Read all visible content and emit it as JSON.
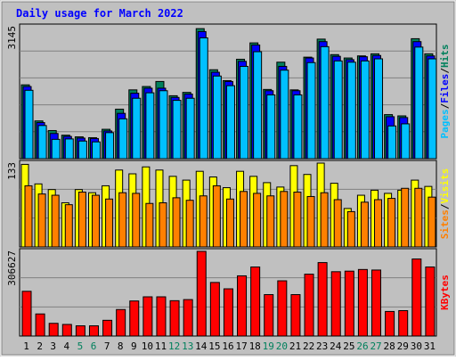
{
  "title": "Daily usage for March 2022",
  "colors": {
    "background": "#c0c0c0",
    "plot_bg": "#c0c0c0",
    "hits": "#00805c",
    "files": "#0000ff",
    "pages": "#00c0ff",
    "visits": "#ffff00",
    "sites": "#ff8000",
    "kbytes": "#ff0000",
    "title": "#0000ff",
    "weekend_day": "#00805c",
    "weekday": "#000000"
  },
  "chart_data": [
    {
      "type": "bar",
      "panel": "hits-files-pages",
      "ymax_label": "3145",
      "ylim": [
        0,
        3145
      ],
      "right_label_parts": [
        "Pages",
        "/",
        "Files",
        "/",
        "Hits"
      ],
      "categories": [
        "1",
        "2",
        "3",
        "4",
        "5",
        "6",
        "7",
        "8",
        "9",
        "10",
        "11",
        "12",
        "13",
        "14",
        "15",
        "16",
        "17",
        "18",
        "19",
        "20",
        "21",
        "22",
        "23",
        "24",
        "25",
        "26",
        "27",
        "28",
        "29",
        "30",
        "31"
      ],
      "series": [
        {
          "name": "Hits",
          "values": [
            1760,
            900,
            670,
            560,
            520,
            500,
            700,
            1180,
            1640,
            1720,
            1840,
            1500,
            1580,
            3100,
            2120,
            1860,
            2370,
            2760,
            1650,
            2300,
            1640,
            2420,
            2850,
            2480,
            2400,
            2450,
            2500,
            1050,
            1020,
            2860,
            2500
          ]
        },
        {
          "name": "Files",
          "values": [
            1720,
            860,
            600,
            530,
            490,
            480,
            660,
            1080,
            1560,
            1680,
            1680,
            1460,
            1540,
            3030,
            2060,
            1840,
            2320,
            2710,
            1620,
            2200,
            1620,
            2400,
            2790,
            2440,
            2360,
            2430,
            2460,
            1000,
            980,
            2790,
            2450
          ]
        },
        {
          "name": "Pages",
          "values": [
            1630,
            790,
            460,
            470,
            420,
            400,
            620,
            950,
            1440,
            1570,
            1620,
            1390,
            1440,
            2880,
            1970,
            1740,
            2200,
            2550,
            1520,
            2110,
            1520,
            2290,
            2670,
            2330,
            2300,
            2330,
            2380,
            780,
            830,
            2660,
            2380
          ]
        }
      ]
    },
    {
      "type": "bar",
      "panel": "visits-sites",
      "ymax_label": "133",
      "ylim": [
        0,
        133
      ],
      "right_label_parts": [
        "Sites",
        "/",
        "Visits"
      ],
      "categories": [
        "1",
        "2",
        "3",
        "4",
        "5",
        "6",
        "7",
        "8",
        "9",
        "10",
        "11",
        "12",
        "13",
        "14",
        "15",
        "16",
        "17",
        "18",
        "19",
        "20",
        "21",
        "22",
        "23",
        "24",
        "25",
        "26",
        "27",
        "28",
        "29",
        "30",
        "31"
      ],
      "series": [
        {
          "name": "Visits",
          "values": [
            131,
            100,
            91,
            70,
            91,
            86,
            97,
            122,
            116,
            127,
            122,
            112,
            106,
            120,
            111,
            94,
            120,
            112,
            102,
            95,
            129,
            115,
            133,
            101,
            61,
            82,
            90,
            85,
            90,
            106,
            96
          ]
        },
        {
          "name": "Sites",
          "values": [
            97,
            84,
            82,
            67,
            87,
            82,
            76,
            86,
            85,
            69,
            70,
            78,
            74,
            81,
            97,
            76,
            88,
            85,
            81,
            88,
            87,
            80,
            86,
            75,
            56,
            71,
            75,
            77,
            93,
            93,
            79
          ]
        }
      ]
    },
    {
      "type": "bar",
      "panel": "kbytes",
      "ymax_label": "306627",
      "ylim": [
        0,
        306627
      ],
      "right_label_parts": [
        "KBytes"
      ],
      "categories": [
        "1",
        "2",
        "3",
        "4",
        "5",
        "6",
        "7",
        "8",
        "9",
        "10",
        "11",
        "12",
        "13",
        "14",
        "15",
        "16",
        "17",
        "18",
        "19",
        "20",
        "21",
        "22",
        "23",
        "24",
        "25",
        "26",
        "27",
        "28",
        "29",
        "30",
        "31"
      ],
      "series": [
        {
          "name": "KBytes",
          "values": [
            162000,
            80000,
            46000,
            42000,
            37000,
            37000,
            57000,
            96000,
            127000,
            142000,
            142000,
            128000,
            132000,
            306627,
            194000,
            171000,
            218000,
            250000,
            150000,
            200000,
            150000,
            224000,
            266000,
            233000,
            235000,
            241000,
            239000,
            89000,
            92000,
            279000,
            250000
          ]
        }
      ]
    }
  ],
  "weekend_days": [
    "5",
    "6",
    "12",
    "13",
    "19",
    "20",
    "26",
    "27"
  ]
}
